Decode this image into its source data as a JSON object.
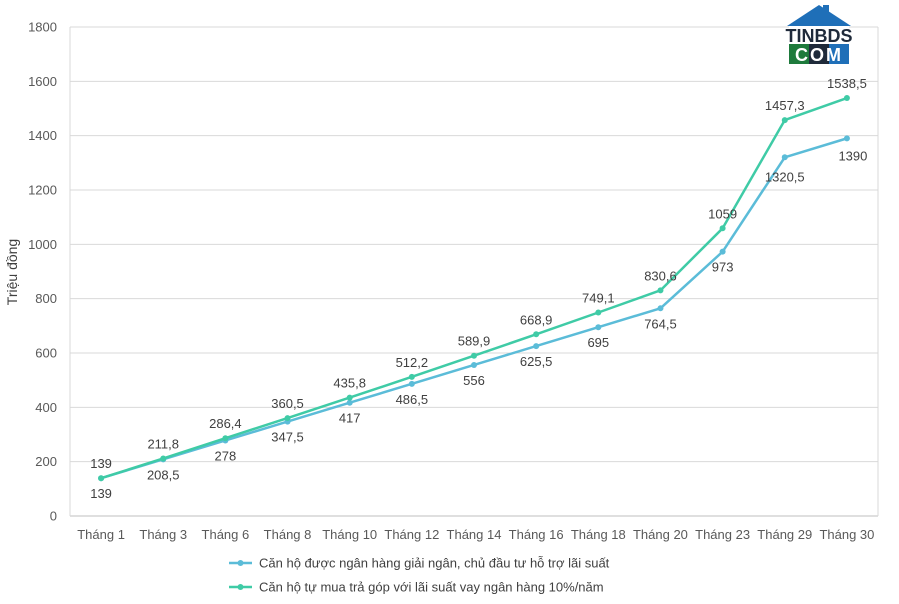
{
  "chart_data": {
    "type": "line",
    "title": "",
    "xlabel": "",
    "ylabel": "Triệu đồng",
    "ylim": [
      0,
      1800
    ],
    "yticks": [
      0,
      200,
      400,
      600,
      800,
      1000,
      1200,
      1400,
      1600,
      1800
    ],
    "grid": true,
    "legend_position": "bottom",
    "categories": [
      "Tháng 1",
      "Tháng 3",
      "Tháng 6",
      "Tháng 8",
      "Tháng 10",
      "Tháng 12",
      "Tháng 14",
      "Tháng 16",
      "Tháng 18",
      "Tháng 20",
      "Tháng 23",
      "Tháng 29",
      "Tháng 30"
    ],
    "series": [
      {
        "name": "Căn hộ được ngân hàng giải ngân, chủ đầu tư hỗ trợ lãi suất",
        "color": "#5BBCD8",
        "values": [
          139,
          208.5,
          278,
          347.5,
          417,
          486.5,
          556,
          625.5,
          695,
          764.5,
          973,
          1320.5,
          1390
        ],
        "labels": [
          "139",
          "208,5",
          "278",
          "347,5",
          "417",
          "486,5",
          "556",
          "625,5",
          "695",
          "764,5",
          "973",
          "1320,5",
          "1390"
        ]
      },
      {
        "name": "Căn hộ tự mua trả góp với lãi suất vay ngân hàng 10%/năm",
        "color": "#3FCBA6",
        "values": [
          139,
          211.8,
          286.4,
          360.5,
          435.8,
          512.2,
          589.9,
          668.9,
          749.1,
          830.6,
          1059,
          1457.3,
          1538.5
        ],
        "labels": [
          "139",
          "211,8",
          "286,4",
          "360,5",
          "435,8",
          "512,2",
          "589,9",
          "668,9",
          "749,1",
          "830,6",
          "1059",
          "1457,3",
          "1538,5"
        ]
      }
    ]
  },
  "logo": {
    "text_top": "TINBDS",
    "text_bottom": "COM"
  }
}
